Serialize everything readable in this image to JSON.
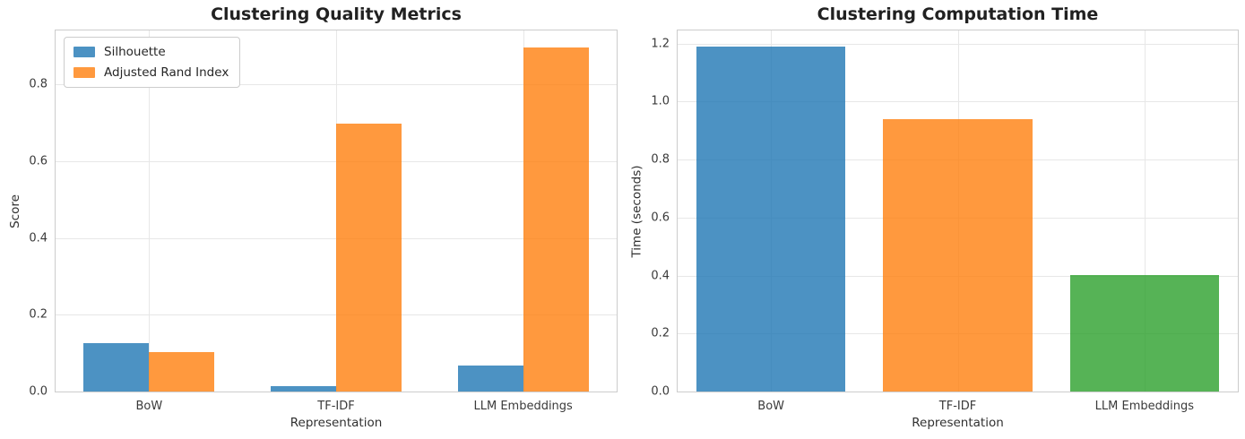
{
  "figure": {
    "background": "#ffffff",
    "grid_color": "#e7e7e7",
    "spine_color": "#cccccc",
    "text_color": "#262626"
  },
  "chart_data": [
    {
      "type": "bar",
      "title": "Clustering Quality Metrics",
      "xlabel": "Representation",
      "ylabel": "Score",
      "categories": [
        "BoW",
        "TF-IDF",
        "LLM Embeddings"
      ],
      "series": [
        {
          "name": "Silhouette",
          "color": "#1f77b4",
          "values": [
            0.125,
            0.015,
            0.068
          ]
        },
        {
          "name": "Adjusted Rand Index",
          "color": "#ff7f0e",
          "values": [
            0.103,
            0.698,
            0.895
          ]
        }
      ],
      "bar_alpha": 0.8,
      "bar_width": 0.35,
      "ylim": [
        0,
        0.94
      ],
      "yticks": [
        "0.0",
        "0.2",
        "0.4",
        "0.6",
        "0.8"
      ],
      "grid": true,
      "legend_position": "upper left"
    },
    {
      "type": "bar",
      "title": "Clustering Computation Time",
      "xlabel": "Representation",
      "ylabel": "Time (seconds)",
      "categories": [
        "BoW",
        "TF-IDF",
        "LLM Embeddings"
      ],
      "values": [
        1.19,
        0.94,
        0.403
      ],
      "colors": [
        "#1f77b4",
        "#ff7f0e",
        "#2ca02c"
      ],
      "bar_alpha": 0.8,
      "bar_width": 0.8,
      "ylim": [
        0,
        1.245
      ],
      "yticks": [
        "0.0",
        "0.2",
        "0.4",
        "0.6",
        "0.8",
        "1.0",
        "1.2"
      ],
      "grid": true,
      "legend_position": null
    }
  ]
}
